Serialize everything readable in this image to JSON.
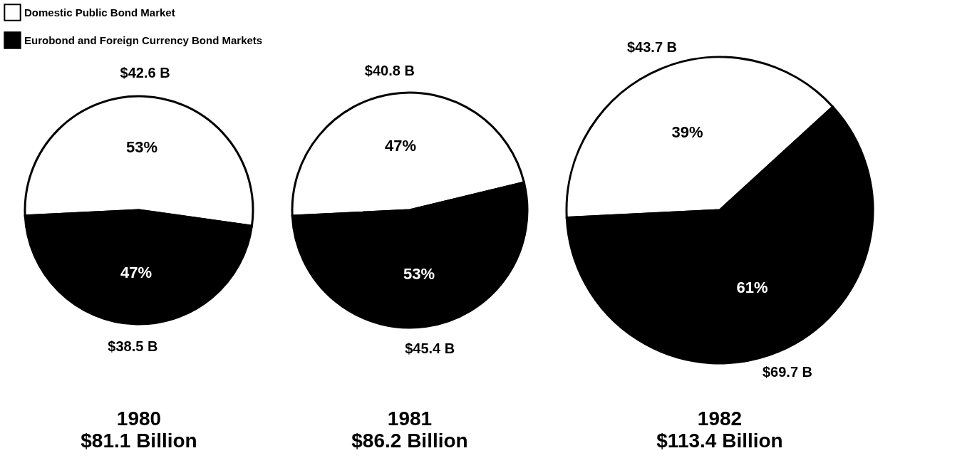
{
  "chart_data": [
    {
      "type": "pie",
      "title": "1980",
      "subtitle": "$81.1 Billion",
      "categories": [
        "Domestic Public Bond Market",
        "Eurobond and Foreign Currency Bond Markets"
      ],
      "values": [
        53,
        47
      ],
      "colors": [
        "#ffffff",
        "#000000"
      ],
      "value_labels": [
        "53%",
        "47%"
      ],
      "annotations": [
        "$42.6 B",
        "$38.5 B"
      ],
      "legend": "top left"
    },
    {
      "type": "pie",
      "title": "1981",
      "subtitle": "$86.2 Billion",
      "categories": [
        null,
        null
      ],
      "values": [
        47,
        53
      ],
      "colors": [
        "#ffffff",
        "#000000"
      ],
      "value_labels": [
        "47%",
        "53%"
      ],
      "annotations": [
        "$40.8 B",
        "$45.4 B"
      ]
    },
    {
      "type": "pie",
      "title": "1982",
      "subtitle": "$113.4 Billion",
      "categories": [
        null,
        null
      ],
      "values": [
        39,
        61
      ],
      "colors": [
        "#ffffff",
        "#000000"
      ],
      "value_labels": [
        "39%",
        "61%"
      ],
      "annotations": [
        "$43.7 B",
        "$69.7 B"
      ]
    }
  ]
}
